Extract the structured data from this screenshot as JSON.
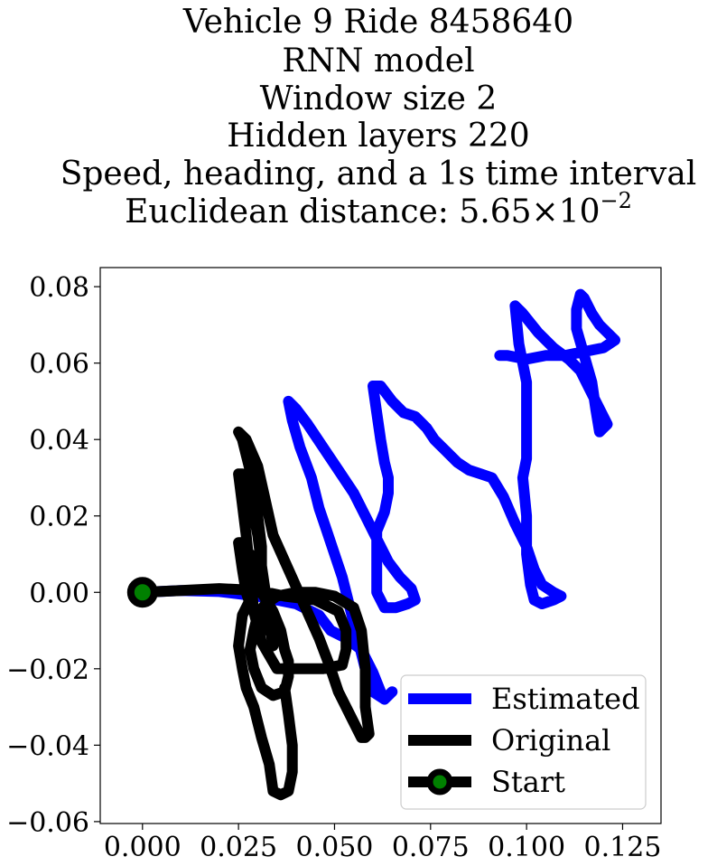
{
  "chart_data": {
    "type": "line",
    "title_lines": [
      "Vehicle 9 Ride 8458640",
      "RNN model",
      "Window size 2",
      "Hidden layers 220",
      "Speed, heading, and a 1s time interval",
      "Euclidean distance: 5.65×10⁻²"
    ],
    "title_formula": {
      "prefix": "Euclidean distance: ",
      "mantissa": "5.65",
      "times": "×",
      "base": "10",
      "exponent": "−2"
    },
    "xlim": [
      -0.011,
      0.135
    ],
    "ylim": [
      -0.0605,
      0.085
    ],
    "x_ticks": [
      0.0,
      0.025,
      0.05,
      0.075,
      0.1,
      0.125
    ],
    "x_tick_labels": [
      "0.000",
      "0.025",
      "0.050",
      "0.075",
      "0.100",
      "0.125"
    ],
    "y_ticks": [
      0.08,
      0.06,
      0.04,
      0.02,
      0.0,
      -0.02,
      -0.04,
      -0.06
    ],
    "y_tick_labels": [
      "0.08",
      "0.06",
      "0.04",
      "0.02",
      "0.00",
      "−0.02",
      "−0.04",
      "−0.06"
    ],
    "grid": false,
    "legend_position": "bottom-right",
    "series": [
      {
        "name": "Estimated",
        "color": "#0000ff",
        "points": [
          [
            0.0,
            0.0
          ],
          [
            0.01,
            0.0005
          ],
          [
            0.02,
            0.0002
          ],
          [
            0.03,
            -0.001
          ],
          [
            0.04,
            -0.003
          ],
          [
            0.046,
            -0.006
          ],
          [
            0.049,
            -0.01
          ],
          [
            0.053,
            -0.012
          ],
          [
            0.057,
            -0.015
          ],
          [
            0.06,
            -0.021
          ],
          [
            0.062,
            -0.026
          ],
          [
            0.063,
            -0.028
          ],
          [
            0.065,
            -0.026
          ],
          [
            0.063,
            -0.028
          ],
          [
            0.06,
            -0.026
          ],
          [
            0.058,
            -0.02
          ],
          [
            0.056,
            -0.012
          ],
          [
            0.054,
            -0.004
          ],
          [
            0.052,
            0.004
          ],
          [
            0.05,
            0.01
          ],
          [
            0.048,
            0.016
          ],
          [
            0.046,
            0.022
          ],
          [
            0.044,
            0.03
          ],
          [
            0.041,
            0.038
          ],
          [
            0.039,
            0.045
          ],
          [
            0.038,
            0.05
          ],
          [
            0.04,
            0.048
          ],
          [
            0.043,
            0.044
          ],
          [
            0.047,
            0.038
          ],
          [
            0.051,
            0.032
          ],
          [
            0.055,
            0.026
          ],
          [
            0.058,
            0.02
          ],
          [
            0.061,
            0.014
          ],
          [
            0.064,
            0.008
          ],
          [
            0.067,
            0.004
          ],
          [
            0.07,
            0.001
          ],
          [
            0.071,
            -0.002
          ],
          [
            0.069,
            -0.003
          ],
          [
            0.066,
            -0.004
          ],
          [
            0.063,
            -0.004
          ],
          [
            0.061,
            0.0
          ],
          [
            0.061,
            0.008
          ],
          [
            0.061,
            0.016
          ],
          [
            0.063,
            0.021
          ],
          [
            0.064,
            0.026
          ],
          [
            0.064,
            0.03
          ],
          [
            0.063,
            0.034
          ],
          [
            0.062,
            0.04
          ],
          [
            0.061,
            0.047
          ],
          [
            0.06,
            0.054
          ],
          [
            0.062,
            0.054
          ],
          [
            0.065,
            0.05
          ],
          [
            0.068,
            0.047
          ],
          [
            0.071,
            0.046
          ],
          [
            0.074,
            0.043
          ],
          [
            0.076,
            0.04
          ],
          [
            0.079,
            0.037
          ],
          [
            0.082,
            0.034
          ],
          [
            0.085,
            0.032
          ],
          [
            0.088,
            0.031
          ],
          [
            0.091,
            0.03
          ],
          [
            0.094,
            0.025
          ],
          [
            0.097,
            0.018
          ],
          [
            0.1,
            0.012
          ],
          [
            0.102,
            0.006
          ],
          [
            0.104,
            0.002
          ],
          [
            0.107,
            0.0
          ],
          [
            0.109,
            -0.001
          ],
          [
            0.107,
            -0.002
          ],
          [
            0.104,
            -0.003
          ],
          [
            0.102,
            -0.002
          ],
          [
            0.101,
            0.002
          ],
          [
            0.1,
            0.01
          ],
          [
            0.1,
            0.02
          ],
          [
            0.099,
            0.03
          ],
          [
            0.1,
            0.035
          ],
          [
            0.1,
            0.04
          ],
          [
            0.1,
            0.048
          ],
          [
            0.1,
            0.055
          ],
          [
            0.098,
            0.065
          ],
          [
            0.097,
            0.075
          ],
          [
            0.099,
            0.073
          ],
          [
            0.103,
            0.068
          ],
          [
            0.107,
            0.064
          ],
          [
            0.111,
            0.061
          ],
          [
            0.114,
            0.058
          ],
          [
            0.116,
            0.054
          ],
          [
            0.118,
            0.05
          ],
          [
            0.12,
            0.046
          ],
          [
            0.121,
            0.044
          ],
          [
            0.12,
            0.043
          ],
          [
            0.119,
            0.042
          ],
          [
            0.118,
            0.048
          ],
          [
            0.117,
            0.055
          ],
          [
            0.115,
            0.062
          ],
          [
            0.113,
            0.069
          ],
          [
            0.113,
            0.074
          ],
          [
            0.114,
            0.078
          ],
          [
            0.115,
            0.077
          ],
          [
            0.117,
            0.073
          ],
          [
            0.119,
            0.07
          ],
          [
            0.121,
            0.068
          ],
          [
            0.123,
            0.066
          ],
          [
            0.12,
            0.064
          ],
          [
            0.115,
            0.063
          ],
          [
            0.11,
            0.062
          ],
          [
            0.105,
            0.062
          ],
          [
            0.1,
            0.061
          ],
          [
            0.095,
            0.062
          ],
          [
            0.093,
            0.062
          ]
        ]
      },
      {
        "name": "Original",
        "color": "#000000",
        "points": [
          [
            0.0,
            0.0
          ],
          [
            0.01,
            0.0005
          ],
          [
            0.02,
            0.001
          ],
          [
            0.03,
            0.0005
          ],
          [
            0.037,
            -0.001
          ],
          [
            0.045,
            -0.002
          ],
          [
            0.051,
            -0.005
          ],
          [
            0.053,
            -0.01
          ],
          [
            0.053,
            -0.015
          ],
          [
            0.052,
            -0.019
          ],
          [
            0.047,
            -0.02
          ],
          [
            0.04,
            -0.02
          ],
          [
            0.035,
            -0.02
          ],
          [
            0.031,
            -0.013
          ],
          [
            0.029,
            -0.005
          ],
          [
            0.028,
            0.005
          ],
          [
            0.027,
            0.015
          ],
          [
            0.026,
            0.023
          ],
          [
            0.025,
            0.031
          ],
          [
            0.026,
            0.031
          ],
          [
            0.028,
            0.025
          ],
          [
            0.03,
            0.015
          ],
          [
            0.031,
            0.007
          ],
          [
            0.032,
            0.0
          ],
          [
            0.033,
            -0.008
          ],
          [
            0.034,
            -0.014
          ],
          [
            0.034,
            -0.012
          ],
          [
            0.032,
            -0.008
          ],
          [
            0.03,
            -0.005
          ],
          [
            0.028,
            -0.003
          ],
          [
            0.027,
            0.0
          ],
          [
            0.026,
            0.006
          ],
          [
            0.025,
            0.013
          ],
          [
            0.026,
            0.013
          ],
          [
            0.027,
            0.009
          ],
          [
            0.029,
            0.004
          ],
          [
            0.03,
            0.0
          ],
          [
            0.031,
            0.005
          ],
          [
            0.031,
            0.012
          ],
          [
            0.03,
            0.02
          ],
          [
            0.029,
            0.028
          ],
          [
            0.027,
            0.036
          ],
          [
            0.026,
            0.04
          ],
          [
            0.025,
            0.042
          ],
          [
            0.027,
            0.04
          ],
          [
            0.03,
            0.033
          ],
          [
            0.032,
            0.024
          ],
          [
            0.034,
            0.015
          ],
          [
            0.038,
            0.006
          ],
          [
            0.042,
            -0.003
          ],
          [
            0.046,
            -0.012
          ],
          [
            0.049,
            -0.02
          ],
          [
            0.051,
            -0.026
          ],
          [
            0.053,
            -0.03
          ],
          [
            0.055,
            -0.034
          ],
          [
            0.057,
            -0.038
          ],
          [
            0.058,
            -0.038
          ],
          [
            0.059,
            -0.037
          ],
          [
            0.058,
            -0.03
          ],
          [
            0.058,
            -0.02
          ],
          [
            0.057,
            -0.01
          ],
          [
            0.055,
            -0.004
          ],
          [
            0.05,
            -0.001
          ],
          [
            0.045,
            0.0
          ],
          [
            0.04,
            0.0
          ],
          [
            0.035,
            -0.001
          ],
          [
            0.032,
            -0.003
          ],
          [
            0.03,
            -0.006
          ],
          [
            0.029,
            -0.01
          ],
          [
            0.028,
            -0.015
          ],
          [
            0.029,
            -0.02
          ],
          [
            0.031,
            -0.025
          ],
          [
            0.034,
            -0.027
          ],
          [
            0.037,
            -0.026
          ],
          [
            0.038,
            -0.022
          ],
          [
            0.038,
            -0.018
          ],
          [
            0.037,
            -0.015
          ],
          [
            0.036,
            -0.01
          ],
          [
            0.034,
            -0.005
          ],
          [
            0.031,
            0.0
          ],
          [
            0.029,
            0.005
          ],
          [
            0.028,
            0.01
          ],
          [
            0.029,
            0.003
          ],
          [
            0.028,
            -0.002
          ],
          [
            0.026,
            -0.006
          ],
          [
            0.025,
            -0.014
          ],
          [
            0.026,
            -0.02
          ],
          [
            0.027,
            -0.025
          ],
          [
            0.029,
            -0.03
          ],
          [
            0.031,
            -0.038
          ],
          [
            0.033,
            -0.045
          ],
          [
            0.034,
            -0.052
          ],
          [
            0.036,
            -0.053
          ],
          [
            0.038,
            -0.052
          ],
          [
            0.039,
            -0.047
          ],
          [
            0.039,
            -0.04
          ],
          [
            0.038,
            -0.032
          ],
          [
            0.037,
            -0.025
          ]
        ]
      }
    ],
    "start_marker": {
      "name": "Start",
      "x": 0.0,
      "y": 0.0,
      "edge_color": "#000000",
      "face_color": "#008000"
    }
  }
}
